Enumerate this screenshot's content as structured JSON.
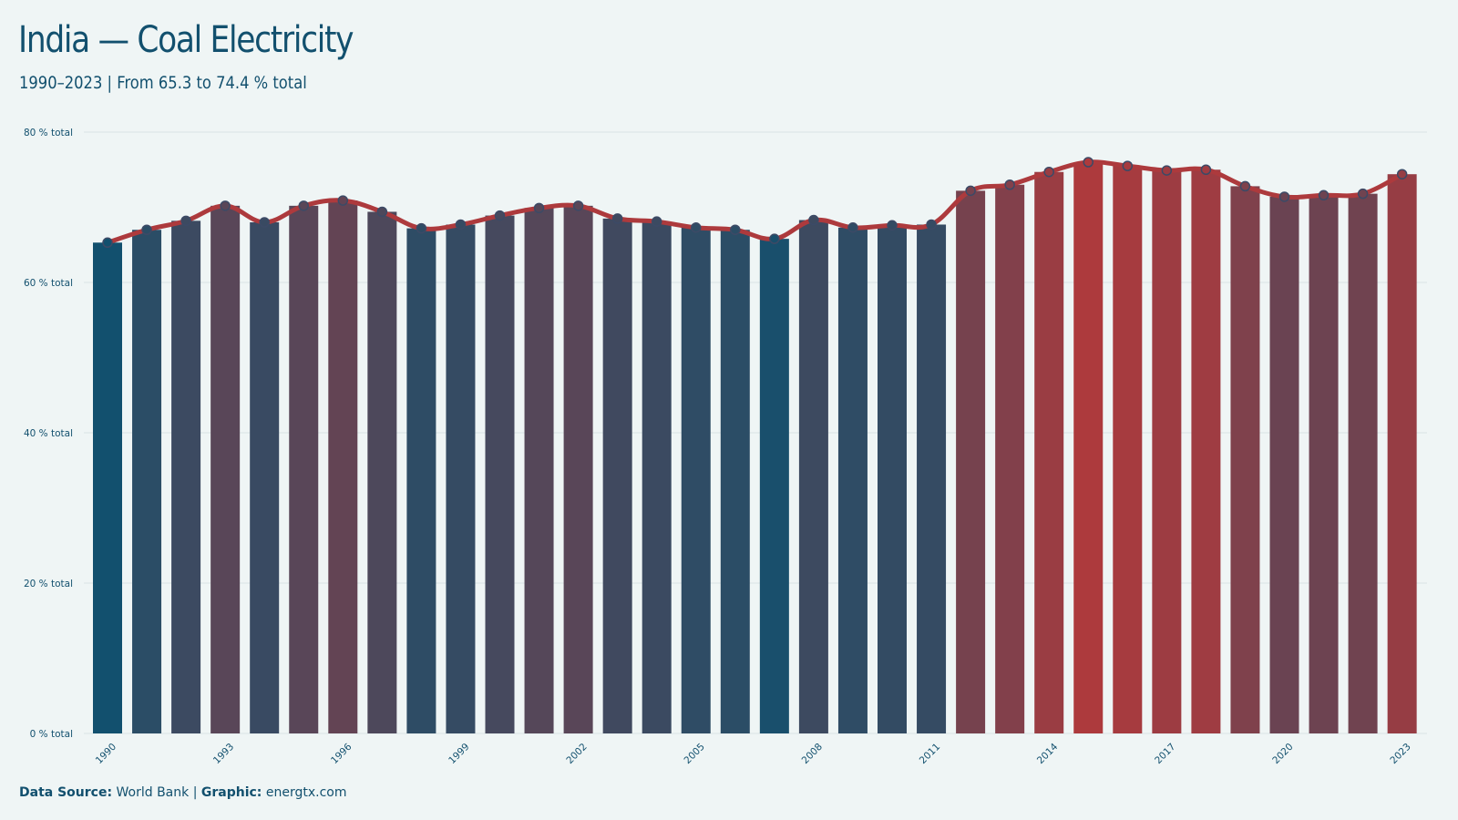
{
  "title": "India — Coal Electricity",
  "subtitle": "1990–2023 | From 65.3 to 74.4 % total",
  "footer": {
    "source_label": "Data Source:",
    "source_value": "World Bank",
    "separator": "|",
    "graphic_label": "Graphic:",
    "graphic_value": "energtx.com"
  },
  "colors": {
    "background": "#eff5f5",
    "text": "#12506e",
    "low": "#12506e",
    "high": "#ad3a3d",
    "line": "#ad3a3d",
    "grid": "#d8e3e5"
  },
  "chart_data": {
    "type": "bar",
    "overlay": "line-with-points",
    "x": [
      1990,
      1991,
      1992,
      1993,
      1994,
      1995,
      1996,
      1997,
      1998,
      1999,
      2000,
      2001,
      2002,
      2003,
      2004,
      2005,
      2006,
      2007,
      2008,
      2009,
      2010,
      2011,
      2012,
      2013,
      2014,
      2015,
      2016,
      2017,
      2018,
      2019,
      2020,
      2021,
      2022,
      2023
    ],
    "x_tick_labels": [
      "1990",
      "1993",
      "1996",
      "1999",
      "2002",
      "2005",
      "2008",
      "2011",
      "2014",
      "2017",
      "2020",
      "2023"
    ],
    "values": [
      65.3,
      67.0,
      68.2,
      70.2,
      68.0,
      70.2,
      70.9,
      69.4,
      67.2,
      67.7,
      68.9,
      69.9,
      70.2,
      68.5,
      68.1,
      67.3,
      67.0,
      65.8,
      68.3,
      67.3,
      67.6,
      67.7,
      72.2,
      73.0,
      74.7,
      76.0,
      75.5,
      74.9,
      75.0,
      72.8,
      71.4,
      71.6,
      71.8,
      74.4
    ],
    "y_ticks": [
      "0 % total",
      "20 % total",
      "40 % total",
      "60 % total",
      "80 % total"
    ],
    "ylim": [
      0,
      80
    ],
    "xlabel": "",
    "ylabel": "",
    "grid": true,
    "legend": "none"
  }
}
